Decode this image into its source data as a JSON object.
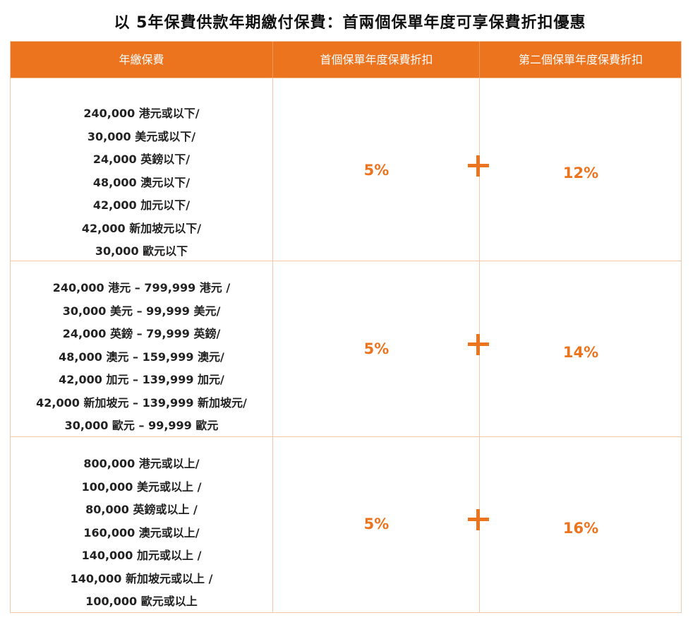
{
  "title": "以 5年保費供款年期繳付保費：首兩個保單年度可享保費折扣優惠",
  "columns": [
    "年繳保費",
    "首個保單年度保費折扣",
    "第二個保單年度保費折扣"
  ],
  "rows": [
    {
      "premium_lines": [
        "240,000 港元或以下/",
        "30,000 美元或以下/",
        "24,000 英鎊以下/",
        "48,000 澳元以下/",
        "42,000 加元以下/",
        "42,000 新加坡元以下/",
        "30,000 歐元以下"
      ],
      "first_year": "5%",
      "second_year": "12%"
    },
    {
      "premium_lines": [
        "240,000 港元 – 799,999 港元 /",
        "30,000 美元 – 99,999 美元/",
        "24,000 英鎊 – 79,999 英鎊/",
        "48,000 澳元 – 159,999 澳元/",
        "42,000 加元 – 139,999 加元/",
        "42,000 新加坡元 – 139,999 新加坡元/",
        "30,000 歐元 – 99,999 歐元"
      ],
      "first_year": "5%",
      "second_year": "14%"
    },
    {
      "premium_lines": [
        "800,000 港元或以上/",
        "100,000 美元或以上 /",
        "80,000 英鎊或以上 /",
        "160,000 澳元或以上/",
        "140,000 加元或以上 /",
        "140,000 新加坡元或以上 /",
        "100,000 歐元或以上"
      ],
      "first_year": "5%",
      "second_year": "16%"
    }
  ],
  "colors": {
    "accent": "#ec741f",
    "border": "#f3c7a6",
    "header_text": "#ffffff"
  },
  "icons": {
    "plus": "plus-icon"
  }
}
